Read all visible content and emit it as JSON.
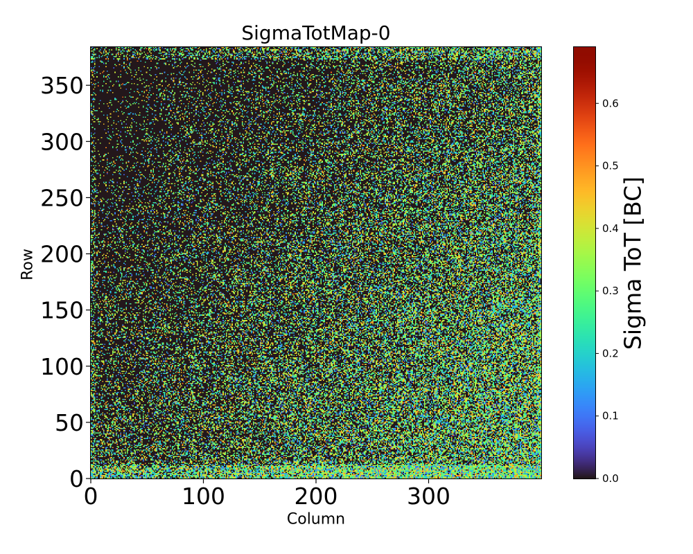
{
  "chart_data": {
    "type": "heatmap",
    "title": "SigmaTotMap-0",
    "xlabel": "Column",
    "ylabel": "Row",
    "xlim": [
      0,
      400
    ],
    "ylim": [
      0,
      384
    ],
    "xticks": [
      0,
      100,
      200,
      300
    ],
    "yticks": [
      0,
      50,
      100,
      150,
      200,
      250,
      300,
      350
    ],
    "grid": {
      "columns": 400,
      "rows": 384
    },
    "colormap": "turbo",
    "colorbar": {
      "label": "Sigma ToT [BC]",
      "vmin": 0.0,
      "vmax": 0.69,
      "ticks": [
        "0.0",
        "0.1",
        "0.2",
        "0.3",
        "0.4",
        "0.5",
        "0.6"
      ]
    },
    "distribution_summary": {
      "dominant_value": 0.0,
      "typical_range": [
        0.0,
        0.45
      ],
      "high_density_region": "lower-right (columns 250-400, rows 0-250)",
      "low_density_region": "upper-left"
    }
  }
}
